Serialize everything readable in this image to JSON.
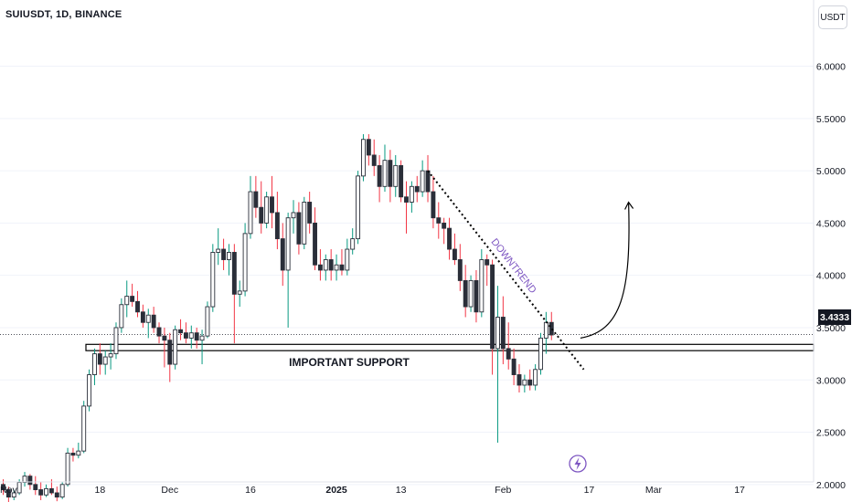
{
  "header": {
    "symbol_label": "SUIUSDT, 1D, BINANCE",
    "unit_button": "USDT"
  },
  "last_price_tag": "3.4333",
  "annotations": {
    "support_label": "IMPORTANT SUPPORT",
    "trend_label": "DOWNTREND"
  },
  "colors": {
    "up": "#089981",
    "down": "#f23645",
    "candle": "#2a2e39",
    "grid": "#f0f3fa",
    "annotation_text": "#7e57c2"
  },
  "icons": {
    "events": "lightning-icon",
    "projection": "curved-arrow-icon"
  },
  "chart_data": {
    "type": "candlestick",
    "ylim": [
      1.85,
      6.45
    ],
    "y_ticks": [
      "6.0000",
      "5.5000",
      "5.0000",
      "4.5000",
      "4.0000",
      "3.5000",
      "3.0000",
      "2.5000",
      "2.0000"
    ],
    "x_ticks": [
      "Nov",
      "18",
      "Dec",
      "16",
      "2025",
      "13",
      "Feb",
      "17",
      "Mar",
      "17"
    ],
    "x_start": "2024-10-31",
    "support_zone": [
      3.28,
      3.34
    ],
    "last_price": 3.4333,
    "trendline": {
      "from": {
        "date": "2025-01-18",
        "price": 5.0
      },
      "to": {
        "date": "2025-02-16",
        "price": 3.1
      }
    },
    "projection": {
      "from": {
        "date": "2025-02-13",
        "price": 3.4
      },
      "to": {
        "date": "2025-02-24",
        "price": 4.7
      }
    },
    "candles": [
      [
        2.0,
        2.05,
        1.9,
        1.95
      ],
      [
        1.95,
        1.98,
        1.8,
        1.88
      ],
      [
        1.88,
        1.95,
        1.85,
        1.92
      ],
      [
        1.92,
        2.05,
        1.9,
        2.02
      ],
      [
        2.02,
        2.12,
        1.98,
        2.08
      ],
      [
        2.08,
        2.1,
        1.95,
        2.0
      ],
      [
        2.0,
        2.08,
        1.9,
        1.95
      ],
      [
        1.95,
        2.02,
        1.85,
        1.9
      ],
      [
        1.9,
        2.0,
        1.88,
        1.96
      ],
      [
        1.96,
        2.05,
        1.9,
        1.92
      ],
      [
        1.92,
        1.98,
        1.84,
        1.88
      ],
      [
        1.88,
        2.02,
        1.86,
        2.0
      ],
      [
        2.0,
        2.35,
        1.98,
        2.3
      ],
      [
        2.3,
        2.35,
        2.22,
        2.28
      ],
      [
        2.28,
        2.4,
        2.25,
        2.32
      ],
      [
        2.32,
        2.8,
        2.3,
        2.75
      ],
      [
        2.75,
        3.1,
        2.7,
        3.05
      ],
      [
        3.05,
        3.3,
        2.95,
        3.25
      ],
      [
        3.25,
        3.35,
        3.05,
        3.15
      ],
      [
        3.15,
        3.28,
        3.05,
        3.22
      ],
      [
        3.22,
        3.35,
        3.1,
        3.25
      ],
      [
        3.25,
        3.55,
        3.2,
        3.5
      ],
      [
        3.5,
        3.78,
        3.45,
        3.72
      ],
      [
        3.72,
        3.95,
        3.6,
        3.8
      ],
      [
        3.8,
        3.92,
        3.7,
        3.75
      ],
      [
        3.75,
        3.85,
        3.6,
        3.65
      ],
      [
        3.65,
        3.72,
        3.5,
        3.55
      ],
      [
        3.55,
        3.68,
        3.4,
        3.62
      ],
      [
        3.62,
        3.7,
        3.45,
        3.5
      ],
      [
        3.5,
        3.55,
        3.35,
        3.42
      ],
      [
        3.42,
        3.5,
        3.12,
        3.38
      ],
      [
        3.38,
        3.45,
        2.98,
        3.15
      ],
      [
        3.15,
        3.52,
        3.1,
        3.48
      ],
      [
        3.48,
        3.58,
        3.38,
        3.45
      ],
      [
        3.45,
        3.55,
        3.35,
        3.4
      ],
      [
        3.4,
        3.52,
        3.3,
        3.45
      ],
      [
        3.45,
        3.5,
        3.3,
        3.38
      ],
      [
        3.38,
        3.48,
        3.15,
        3.42
      ],
      [
        3.42,
        3.75,
        3.4,
        3.7
      ],
      [
        3.7,
        4.3,
        3.65,
        4.22
      ],
      [
        4.22,
        4.45,
        4.1,
        4.25
      ],
      [
        4.25,
        4.35,
        4.05,
        4.15
      ],
      [
        4.15,
        4.3,
        4.0,
        4.22
      ],
      [
        4.22,
        4.3,
        3.35,
        3.82
      ],
      [
        3.82,
        3.95,
        3.7,
        3.85
      ],
      [
        3.85,
        4.5,
        3.8,
        4.4
      ],
      [
        4.4,
        4.95,
        4.35,
        4.8
      ],
      [
        4.8,
        4.95,
        4.55,
        4.65
      ],
      [
        4.65,
        4.9,
        4.4,
        4.5
      ],
      [
        4.5,
        4.8,
        4.45,
        4.75
      ],
      [
        4.75,
        4.95,
        4.45,
        4.6
      ],
      [
        4.6,
        4.8,
        4.25,
        4.35
      ],
      [
        4.35,
        4.5,
        3.9,
        4.05
      ],
      [
        4.05,
        4.6,
        3.5,
        4.55
      ],
      [
        4.55,
        4.72,
        4.4,
        4.6
      ],
      [
        4.6,
        4.7,
        4.2,
        4.3
      ],
      [
        4.3,
        4.75,
        4.25,
        4.7
      ],
      [
        4.7,
        4.8,
        4.4,
        4.5
      ],
      [
        4.5,
        4.65,
        4.05,
        4.1
      ],
      [
        4.1,
        4.25,
        3.95,
        4.05
      ],
      [
        4.05,
        4.2,
        3.95,
        4.15
      ],
      [
        4.15,
        4.25,
        3.95,
        4.05
      ],
      [
        4.05,
        4.2,
        3.95,
        4.1
      ],
      [
        4.1,
        4.25,
        4.0,
        4.05
      ],
      [
        4.05,
        4.35,
        4.0,
        4.25
      ],
      [
        4.25,
        4.45,
        4.2,
        4.35
      ],
      [
        4.35,
        5.0,
        4.3,
        4.95
      ],
      [
        4.95,
        5.35,
        4.9,
        5.3
      ],
      [
        5.3,
        5.35,
        5.05,
        5.15
      ],
      [
        5.15,
        5.3,
        4.95,
        5.05
      ],
      [
        5.05,
        5.15,
        4.7,
        4.85
      ],
      [
        4.85,
        5.25,
        4.8,
        5.1
      ],
      [
        5.1,
        5.2,
        4.7,
        4.85
      ],
      [
        4.85,
        5.15,
        4.75,
        5.05
      ],
      [
        5.05,
        5.1,
        4.7,
        4.75
      ],
      [
        4.75,
        4.9,
        4.4,
        4.7
      ],
      [
        4.7,
        4.9,
        4.6,
        4.85
      ],
      [
        4.85,
        4.95,
        4.7,
        4.8
      ],
      [
        4.8,
        5.1,
        4.75,
        5.0
      ],
      [
        5.0,
        5.15,
        4.7,
        4.8
      ],
      [
        4.8,
        4.95,
        4.45,
        4.55
      ],
      [
        4.55,
        4.7,
        4.35,
        4.5
      ],
      [
        4.5,
        4.55,
        4.3,
        4.45
      ],
      [
        4.45,
        4.55,
        4.15,
        4.25
      ],
      [
        4.25,
        4.4,
        4.1,
        4.15
      ],
      [
        4.15,
        4.3,
        3.85,
        3.95
      ],
      [
        3.95,
        4.1,
        3.6,
        3.7
      ],
      [
        3.7,
        4.0,
        3.65,
        3.95
      ],
      [
        3.95,
        4.05,
        3.55,
        3.65
      ],
      [
        3.65,
        4.25,
        3.6,
        4.15
      ],
      [
        4.15,
        4.2,
        3.9,
        4.1
      ],
      [
        4.1,
        4.15,
        3.05,
        3.3
      ],
      [
        3.3,
        3.9,
        2.4,
        3.6
      ],
      [
        3.6,
        3.8,
        3.15,
        3.3
      ],
      [
        3.3,
        3.55,
        3.1,
        3.2
      ],
      [
        3.2,
        3.3,
        2.95,
        3.05
      ],
      [
        3.05,
        3.15,
        2.88,
        2.95
      ],
      [
        2.95,
        3.05,
        2.88,
        3.0
      ],
      [
        3.0,
        3.1,
        2.9,
        2.95
      ],
      [
        2.95,
        3.15,
        2.9,
        3.1
      ],
      [
        3.1,
        3.45,
        3.05,
        3.4
      ],
      [
        3.4,
        3.65,
        3.25,
        3.55
      ],
      [
        3.55,
        3.65,
        3.38,
        3.43
      ]
    ]
  }
}
